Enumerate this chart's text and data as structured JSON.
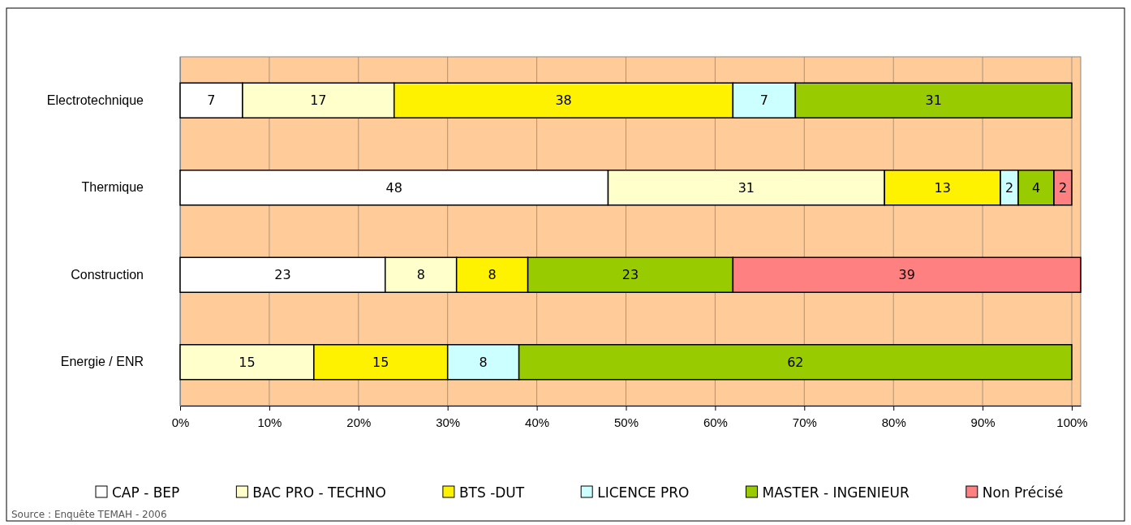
{
  "chart_data": {
    "type": "bar",
    "orientation": "horizontal",
    "stacked": true,
    "data_labels": true,
    "grid": "x",
    "legend": "bottom",
    "categories": [
      "Electrotechnique",
      "Thermique",
      "Construction",
      "Energie / ENR"
    ],
    "series": [
      {
        "name": "CAP - BEP",
        "color": "#ffffff",
        "values": [
          7,
          48,
          23,
          null
        ]
      },
      {
        "name": "BAC PRO - TECHNO",
        "color": "#ffffcc",
        "values": [
          17,
          31,
          8,
          15
        ]
      },
      {
        "name": "BTS -DUT",
        "color": "#fff200",
        "values": [
          38,
          13,
          8,
          15
        ]
      },
      {
        "name": "LICENCE PRO",
        "color": "#ccffff",
        "values": [
          7,
          2,
          null,
          8
        ]
      },
      {
        "name": "MASTER - INGENIEUR",
        "color": "#99cc00",
        "values": [
          31,
          4,
          23,
          62
        ]
      },
      {
        "name": "Non Précisé",
        "color": "#ff8080",
        "values": [
          null,
          2,
          39,
          null
        ]
      }
    ],
    "xlim": [
      0,
      101
    ],
    "xticks": [
      {
        "value": 0,
        "label": "0%"
      },
      {
        "value": 10,
        "label": "10%"
      },
      {
        "value": 20,
        "label": "20%"
      },
      {
        "value": 30,
        "label": "30%"
      },
      {
        "value": 40,
        "label": "40%"
      },
      {
        "value": 50,
        "label": "50%"
      },
      {
        "value": 60,
        "label": "60%"
      },
      {
        "value": 70,
        "label": "70%"
      },
      {
        "value": 80,
        "label": "80%"
      },
      {
        "value": 90,
        "label": "90%"
      },
      {
        "value": 100,
        "label": "100%"
      }
    ],
    "annotations": [
      "Source : Enquête TEMAH - 2006"
    ]
  }
}
